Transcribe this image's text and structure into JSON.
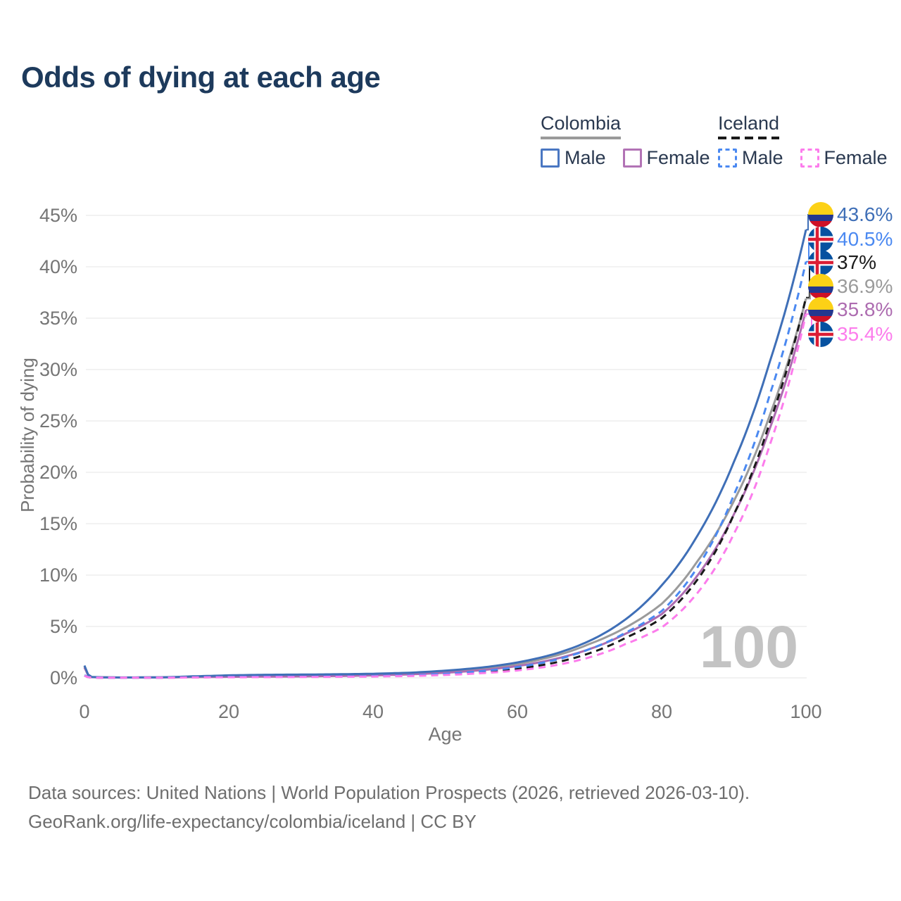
{
  "title": "Odds of dying at each age",
  "footer": {
    "line1": "Data sources: United Nations | World Population Prospects (2026, retrieved 2026-03-10).",
    "line2": "GeoRank.org/life-expectancy/colombia/iceland | CC BY"
  },
  "colors": {
    "title_text": "#1d3a5c",
    "legend_text": "#2a3950",
    "axis_text": "#757575",
    "gridline": "#e9e9e9",
    "watermark_text": "#c3c3c3",
    "footer_text": "#6e6e6e",
    "colombia_male": "#3f6fb7",
    "colombia_female": "#ad6cb0",
    "colombia_both": "#9b9b9b",
    "iceland_male": "#4b89f1",
    "iceland_female": "#fc7cec",
    "iceland_both": "#1a1a1a",
    "flag_colombia_yellow": "#fcd116",
    "flag_colombia_blue": "#24388f",
    "flag_colombia_red": "#ce1126",
    "flag_iceland_blue": "#0751a0",
    "flag_iceland_red": "#dc1e35",
    "flag_iceland_white": "#ffffff"
  },
  "legend": {
    "groups": [
      {
        "name": "Colombia",
        "underline": "solid",
        "items": [
          {
            "label": "Male",
            "color": "#4a77c2",
            "dashed": false
          },
          {
            "label": "Female",
            "color": "#b273b5",
            "dashed": false
          }
        ]
      },
      {
        "name": "Iceland",
        "underline": "dashed",
        "items": [
          {
            "label": "Male",
            "color": "#4b89f1",
            "dashed": true
          },
          {
            "label": "Female",
            "color": "#fc7cec",
            "dashed": true
          }
        ]
      }
    ]
  },
  "chart_data": {
    "type": "line",
    "title": "Odds of dying at each age",
    "xlabel": "Age",
    "ylabel": "Probability of dying",
    "xlim": [
      0,
      100
    ],
    "ylim": [
      0,
      45
    ],
    "x_ticks": [
      0,
      20,
      40,
      60,
      80,
      100
    ],
    "y_ticks": [
      0,
      5,
      10,
      15,
      20,
      25,
      30,
      35,
      40,
      45
    ],
    "y_tick_suffix": "%",
    "grid": "horizontal-only",
    "legend_position": "top-right",
    "watermark": "100",
    "ages": [
      0,
      1,
      3,
      5,
      10,
      15,
      20,
      25,
      30,
      35,
      40,
      45,
      50,
      55,
      60,
      65,
      70,
      75,
      80,
      85,
      90,
      95,
      100
    ],
    "series": [
      {
        "name": "Colombia Both sexes",
        "key": "colombia-both",
        "flag": "colombia",
        "color": "#9b9b9b",
        "dashed": false,
        "values": [
          1.1,
          0.08,
          0.045,
          0.035,
          0.04,
          0.1,
          0.17,
          0.2,
          0.22,
          0.26,
          0.32,
          0.42,
          0.6,
          0.9,
          1.35,
          2.1,
          3.3,
          4.9,
          7.2,
          11.4,
          17.2,
          25.6,
          36.9
        ],
        "end_label": "36.9%"
      },
      {
        "name": "Colombia Female",
        "key": "colombia-female",
        "flag": "colombia",
        "color": "#ad6cb0",
        "dashed": false,
        "values": [
          1.0,
          0.07,
          0.04,
          0.03,
          0.04,
          0.07,
          0.1,
          0.12,
          0.14,
          0.18,
          0.24,
          0.34,
          0.5,
          0.75,
          1.15,
          1.8,
          2.8,
          4.3,
          6.2,
          10.0,
          15.9,
          24.3,
          35.8
        ],
        "end_label": "35.8%"
      },
      {
        "name": "Colombia Male",
        "key": "colombia-male",
        "flag": "colombia",
        "color": "#3f6fb7",
        "dashed": false,
        "values": [
          1.2,
          0.09,
          0.05,
          0.04,
          0.05,
          0.15,
          0.25,
          0.3,
          0.32,
          0.35,
          0.4,
          0.5,
          0.7,
          1.0,
          1.5,
          2.3,
          3.6,
          5.7,
          9.0,
          13.9,
          21.0,
          30.8,
          43.6
        ],
        "end_label": "43.6%"
      },
      {
        "name": "Iceland Both sexes",
        "key": "iceland-both",
        "flag": "iceland",
        "color": "#1a1a1a",
        "dashed": true,
        "values": [
          0.22,
          0.028,
          0.018,
          0.014,
          0.018,
          0.05,
          0.09,
          0.1,
          0.11,
          0.13,
          0.16,
          0.22,
          0.35,
          0.55,
          0.9,
          1.45,
          2.4,
          3.9,
          5.8,
          9.6,
          15.9,
          24.9,
          37.0
        ],
        "end_label": "37%"
      },
      {
        "name": "Iceland Male",
        "key": "iceland-male",
        "flag": "iceland",
        "color": "#4b89f1",
        "dashed": true,
        "values": [
          0.25,
          0.03,
          0.02,
          0.015,
          0.02,
          0.06,
          0.1,
          0.11,
          0.12,
          0.14,
          0.18,
          0.25,
          0.4,
          0.65,
          1.05,
          1.7,
          2.8,
          4.4,
          6.5,
          10.8,
          17.8,
          27.6,
          40.5
        ],
        "end_label": "40.5%"
      },
      {
        "name": "Iceland Female",
        "key": "iceland-female",
        "flag": "iceland",
        "color": "#fc7cec",
        "dashed": true,
        "values": [
          0.2,
          0.025,
          0.015,
          0.012,
          0.015,
          0.04,
          0.06,
          0.07,
          0.08,
          0.1,
          0.13,
          0.18,
          0.28,
          0.45,
          0.72,
          1.2,
          2.0,
          3.3,
          4.9,
          8.3,
          14.0,
          22.7,
          35.4
        ],
        "end_label": "35.4%"
      }
    ],
    "end_labels": [
      {
        "series": "Colombia Male",
        "key": "colombia-male",
        "flag": "colombia",
        "text": "43.6%",
        "color": "#3f6fb7"
      },
      {
        "series": "Iceland Male",
        "key": "iceland-male",
        "flag": "iceland",
        "text": "40.5%",
        "color": "#4b89f1"
      },
      {
        "series": "Iceland Both sexes",
        "key": "iceland-both",
        "flag": "iceland",
        "text": "37%",
        "color": "#1a1a1a"
      },
      {
        "series": "Colombia Both sexes",
        "key": "colombia-both",
        "flag": "colombia",
        "text": "36.9%",
        "color": "#9b9b9b"
      },
      {
        "series": "Colombia Female",
        "key": "colombia-female",
        "flag": "colombia",
        "text": "35.8%",
        "color": "#ad6cb0"
      },
      {
        "series": "Iceland Female",
        "key": "iceland-female",
        "flag": "iceland",
        "text": "35.4%",
        "color": "#fc7cec"
      }
    ]
  }
}
